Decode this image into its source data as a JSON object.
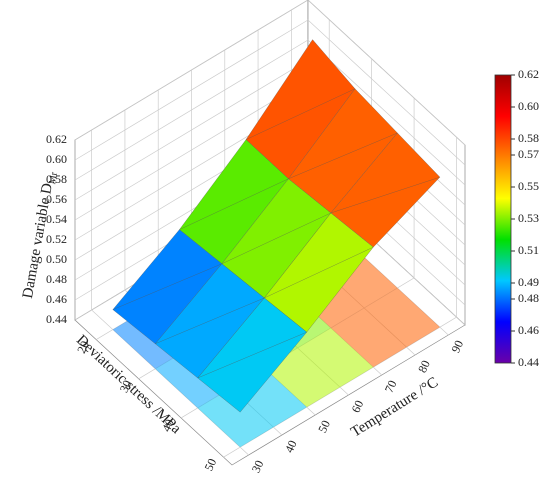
{
  "chart_data": {
    "type": "surface",
    "x_label": "Temperature /°C",
    "y_label": "Deviatoric stress /MPa",
    "z_label": "Damage variable D",
    "z_label_sub": "Mr",
    "x": [
      30,
      50,
      70,
      90
    ],
    "y": [
      20,
      30,
      40,
      50
    ],
    "z": [
      [
        0.46,
        0.465,
        0.47,
        0.475
      ],
      [
        0.5,
        0.505,
        0.51,
        0.515
      ],
      [
        0.55,
        0.55,
        0.555,
        0.56
      ],
      [
        0.61,
        0.6,
        0.595,
        0.59
      ]
    ],
    "xlim": [
      25,
      95
    ],
    "ylim": [
      15,
      52
    ],
    "zlim": [
      0.44,
      0.62
    ],
    "xticks": [
      30,
      40,
      50,
      60,
      70,
      80,
      90
    ],
    "yticks": [
      20,
      30,
      40,
      50
    ],
    "zticks": [
      0.44,
      0.46,
      0.48,
      {
        "value": 0.5,
        "label": "0.50"
      },
      0.52,
      0.54,
      0.56,
      0.58,
      {
        "value": 0.6,
        "label": "0.60"
      },
      0.62
    ],
    "colorbar_ticks": [
      0.44,
      0.46,
      0.48,
      0.49,
      0.51,
      0.53,
      0.55,
      0.57,
      0.58,
      {
        "value": 0.6,
        "label": "0.60"
      },
      0.62
    ],
    "colors": [
      "#6a00a8",
      "#0000ff",
      "#00c8ff",
      "#00e000",
      "#ffff00",
      "#ff8000",
      "#ff0000",
      "#a00000"
    ],
    "grid": true
  }
}
